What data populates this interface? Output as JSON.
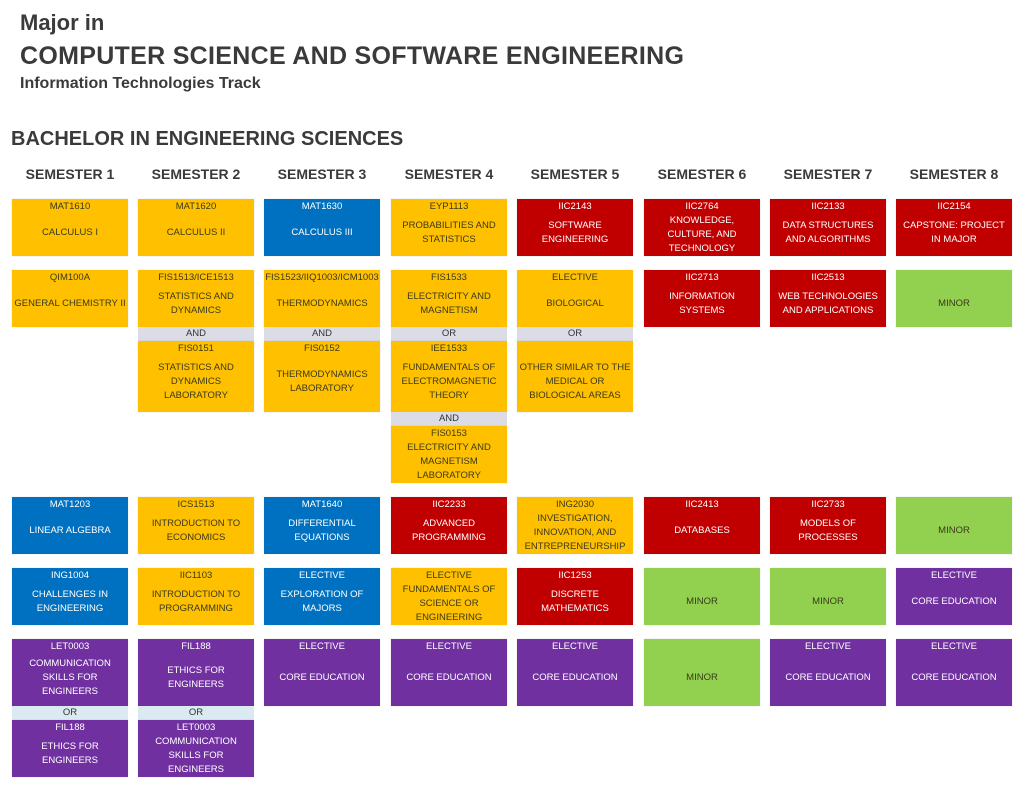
{
  "title": {
    "line1": "Major in",
    "line2": "COMPUTER SCIENCE AND SOFTWARE ENGINEERING",
    "line3": "Information Technologies Track",
    "section": "BACHELOR IN ENGINEERING SCIENCES"
  },
  "colors": {
    "yellow": "#FFC000",
    "blue": "#0070C0",
    "red": "#C00000",
    "green": "#92D050",
    "purple": "#7030A0",
    "connector_a": "#DCDCE6",
    "connector_b": "#DAEAF0"
  },
  "semesters": [
    {
      "label": "SEMESTER 1",
      "slots": [
        {
          "row": 1,
          "items": [
            {
              "code": "MAT1610",
              "name": "CALCULUS I",
              "color": "yellow"
            }
          ]
        },
        {
          "row": 2,
          "items": [
            {
              "code": "QIM100A",
              "name": "GENERAL CHEMISTRY II",
              "color": "yellow"
            }
          ]
        },
        {
          "row": 3,
          "items": [
            {
              "code": "MAT1203",
              "name": "LINEAR ALGEBRA",
              "color": "blue"
            }
          ]
        },
        {
          "row": 4,
          "items": [
            {
              "code": "ING1004",
              "name": "CHALLENGES IN ENGINEERING",
              "color": "blue"
            }
          ]
        },
        {
          "row": 5,
          "items": [
            {
              "code": "LET0003",
              "name": "COMMUNICATION SKILLS FOR ENGINEERS",
              "color": "purple"
            },
            {
              "connector": "OR"
            },
            {
              "code": "FIL188",
              "name": "ETHICS FOR ENGINEERS",
              "color": "purple"
            }
          ]
        }
      ]
    },
    {
      "label": "SEMESTER 2",
      "slots": [
        {
          "row": 1,
          "items": [
            {
              "code": "MAT1620",
              "name": "CALCULUS II",
              "color": "yellow"
            }
          ]
        },
        {
          "row": 2,
          "items": [
            {
              "code": "FIS1513/ICE1513",
              "name": "STATISTICS AND DYNAMICS",
              "color": "yellow"
            },
            {
              "connector": "AND"
            },
            {
              "code": "FIS0151",
              "name": "STATISTICS AND DYNAMICS LABORATORY",
              "color": "yellow"
            }
          ]
        },
        {
          "row": 3,
          "items": [
            {
              "code": "ICS1513",
              "name": "INTRODUCTION TO ECONOMICS",
              "color": "yellow"
            }
          ]
        },
        {
          "row": 4,
          "items": [
            {
              "code": "IIC1103",
              "name": "INTRODUCTION TO PROGRAMMING",
              "color": "yellow"
            }
          ]
        },
        {
          "row": 5,
          "items": [
            {
              "code": "FIL188",
              "name": "ETHICS FOR ENGINEERS",
              "color": "purple"
            },
            {
              "connector": "OR"
            },
            {
              "code": "LET0003",
              "name": "COMMUNICATION SKILLS FOR ENGINEERS",
              "color": "purple"
            }
          ]
        }
      ]
    },
    {
      "label": "SEMESTER 3",
      "slots": [
        {
          "row": 1,
          "items": [
            {
              "code": "MAT1630",
              "name": "CALCULUS III",
              "color": "blue"
            }
          ]
        },
        {
          "row": 2,
          "items": [
            {
              "code": "FIS1523/IIQ1003/ICM1003",
              "name": "THERMODYNAMICS",
              "color": "yellow"
            },
            {
              "connector": "AND"
            },
            {
              "code": "FIS0152",
              "name": "THERMODYNAMICS LABORATORY",
              "color": "yellow"
            }
          ]
        },
        {
          "row": 3,
          "items": [
            {
              "code": "MAT1640",
              "name": "DIFFERENTIAL EQUATIONS",
              "color": "blue"
            }
          ]
        },
        {
          "row": 4,
          "items": [
            {
              "code": "ELECTIVE",
              "name": "EXPLORATION OF MAJORS",
              "color": "blue"
            }
          ]
        },
        {
          "row": 5,
          "items": [
            {
              "code": "ELECTIVE",
              "name": "CORE EDUCATION",
              "color": "purple"
            }
          ]
        }
      ]
    },
    {
      "label": "SEMESTER 4",
      "slots": [
        {
          "row": 1,
          "items": [
            {
              "code": "EYP1113",
              "name": "PROBABILITIES AND STATISTICS",
              "color": "yellow"
            }
          ]
        },
        {
          "row": 2,
          "items": [
            {
              "code": "FIS1533",
              "name": "ELECTRICITY AND MAGNETISM",
              "color": "yellow"
            },
            {
              "connector": "OR"
            },
            {
              "code": "IEE1533",
              "name": "FUNDAMENTALS OF ELECTROMAGNETIC THEORY",
              "color": "yellow"
            },
            {
              "connector": "AND"
            },
            {
              "code": "FIS0153",
              "name": "ELECTRICITY AND MAGNETISM LABORATORY",
              "color": "yellow"
            }
          ]
        },
        {
          "row": 3,
          "items": [
            {
              "code": "IIC2233",
              "name": "ADVANCED PROGRAMMING",
              "color": "red"
            }
          ]
        },
        {
          "row": 4,
          "items": [
            {
              "code": "ELECTIVE",
              "name": "FUNDAMENTALS OF SCIENCE OR ENGINEERING",
              "color": "yellow"
            }
          ]
        },
        {
          "row": 5,
          "items": [
            {
              "code": "ELECTIVE",
              "name": "CORE EDUCATION",
              "color": "purple"
            }
          ]
        }
      ]
    },
    {
      "label": "SEMESTER 5",
      "slots": [
        {
          "row": 1,
          "items": [
            {
              "code": "IIC2143",
              "name": "SOFTWARE ENGINEERING",
              "color": "red"
            }
          ]
        },
        {
          "row": 2,
          "items": [
            {
              "code": "ELECTIVE",
              "name": "BIOLOGICAL",
              "color": "yellow"
            },
            {
              "connector": "OR"
            },
            {
              "code": "",
              "name": "OTHER SIMILAR TO THE MEDICAL OR BIOLOGICAL AREAS",
              "color": "yellow"
            }
          ]
        },
        {
          "row": 3,
          "items": [
            {
              "code": "ING2030",
              "name": "INVESTIGATION, INNOVATION, AND ENTREPRENEURSHIP",
              "color": "yellow"
            }
          ]
        },
        {
          "row": 4,
          "items": [
            {
              "code": "IIC1253",
              "name": "DISCRETE MATHEMATICS",
              "color": "red"
            }
          ]
        },
        {
          "row": 5,
          "items": [
            {
              "code": "ELECTIVE",
              "name": "CORE EDUCATION",
              "color": "purple"
            }
          ]
        }
      ]
    },
    {
      "label": "SEMESTER 6",
      "slots": [
        {
          "row": 1,
          "items": [
            {
              "code": "IIC2764",
              "name": "KNOWLEDGE, CULTURE, AND TECHNOLOGY",
              "color": "red"
            }
          ]
        },
        {
          "row": 2,
          "items": [
            {
              "code": "IIC2713",
              "name": "INFORMATION SYSTEMS",
              "color": "red"
            }
          ]
        },
        {
          "row": 3,
          "items": [
            {
              "code": "IIC2413",
              "name": "DATABASES",
              "color": "red"
            }
          ]
        },
        {
          "row": 4,
          "items": [
            {
              "code": "",
              "name": "MINOR",
              "color": "green"
            }
          ]
        },
        {
          "row": 5,
          "items": [
            {
              "code": "",
              "name": "MINOR",
              "color": "green"
            }
          ]
        }
      ]
    },
    {
      "label": "SEMESTER 7",
      "slots": [
        {
          "row": 1,
          "items": [
            {
              "code": "IIC2133",
              "name": "DATA STRUCTURES AND ALGORITHMS",
              "color": "red"
            }
          ]
        },
        {
          "row": 2,
          "items": [
            {
              "code": "IIC2513",
              "name": "WEB TECHNOLOGIES AND APPLICATIONS",
              "color": "red"
            }
          ]
        },
        {
          "row": 3,
          "items": [
            {
              "code": "IIC2733",
              "name": "MODELS OF PROCESSES",
              "color": "red"
            }
          ]
        },
        {
          "row": 4,
          "items": [
            {
              "code": "",
              "name": "MINOR",
              "color": "green"
            }
          ]
        },
        {
          "row": 5,
          "items": [
            {
              "code": "ELECTIVE",
              "name": "CORE EDUCATION",
              "color": "purple"
            }
          ]
        }
      ]
    },
    {
      "label": "SEMESTER 8",
      "slots": [
        {
          "row": 1,
          "items": [
            {
              "code": "IIC2154",
              "name": "CAPSTONE: PROJECT IN MAJOR",
              "color": "red"
            }
          ]
        },
        {
          "row": 2,
          "items": [
            {
              "code": "",
              "name": "MINOR",
              "color": "green"
            }
          ]
        },
        {
          "row": 3,
          "items": [
            {
              "code": "",
              "name": "MINOR",
              "color": "green"
            }
          ]
        },
        {
          "row": 4,
          "items": [
            {
              "code": "ELECTIVE",
              "name": "CORE EDUCATION",
              "color": "purple"
            }
          ]
        },
        {
          "row": 5,
          "items": [
            {
              "code": "ELECTIVE",
              "name": "CORE EDUCATION",
              "color": "purple"
            }
          ]
        }
      ]
    }
  ]
}
